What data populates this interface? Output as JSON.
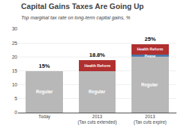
{
  "chart_data": {
    "type": "bar",
    "stacked": true,
    "title": "Capital Gains Taxes Are Going Up",
    "subtitle": "Top marginal tax rate on long-term capital gains, %",
    "categories": [
      "Today",
      "2013\n(Tax cuts extended)",
      "2013\n(Tax cuts expire)"
    ],
    "series": [
      {
        "name": "Regular",
        "color": "#b8b8b8",
        "values": [
          15,
          15,
          20
        ]
      },
      {
        "name": "Pease",
        "color": "#4a7aad",
        "values": [
          0,
          0,
          0.8
        ]
      },
      {
        "name": "Health Reform",
        "color": "#b03030",
        "values": [
          0,
          3.8,
          3.8
        ]
      }
    ],
    "annotations": [
      {
        "x": "Today",
        "y": 15,
        "text": "15%"
      },
      {
        "x": "2013\n(Tax cuts extended)",
        "y": 18.8,
        "text": "18.8%"
      },
      {
        "x": "2013\n(Tax cuts expire)",
        "y": 24.6,
        "text": "25%"
      }
    ],
    "ylim": [
      0,
      30
    ],
    "yticks": [
      0,
      5,
      10,
      15,
      20,
      25,
      30
    ],
    "grid": true
  }
}
